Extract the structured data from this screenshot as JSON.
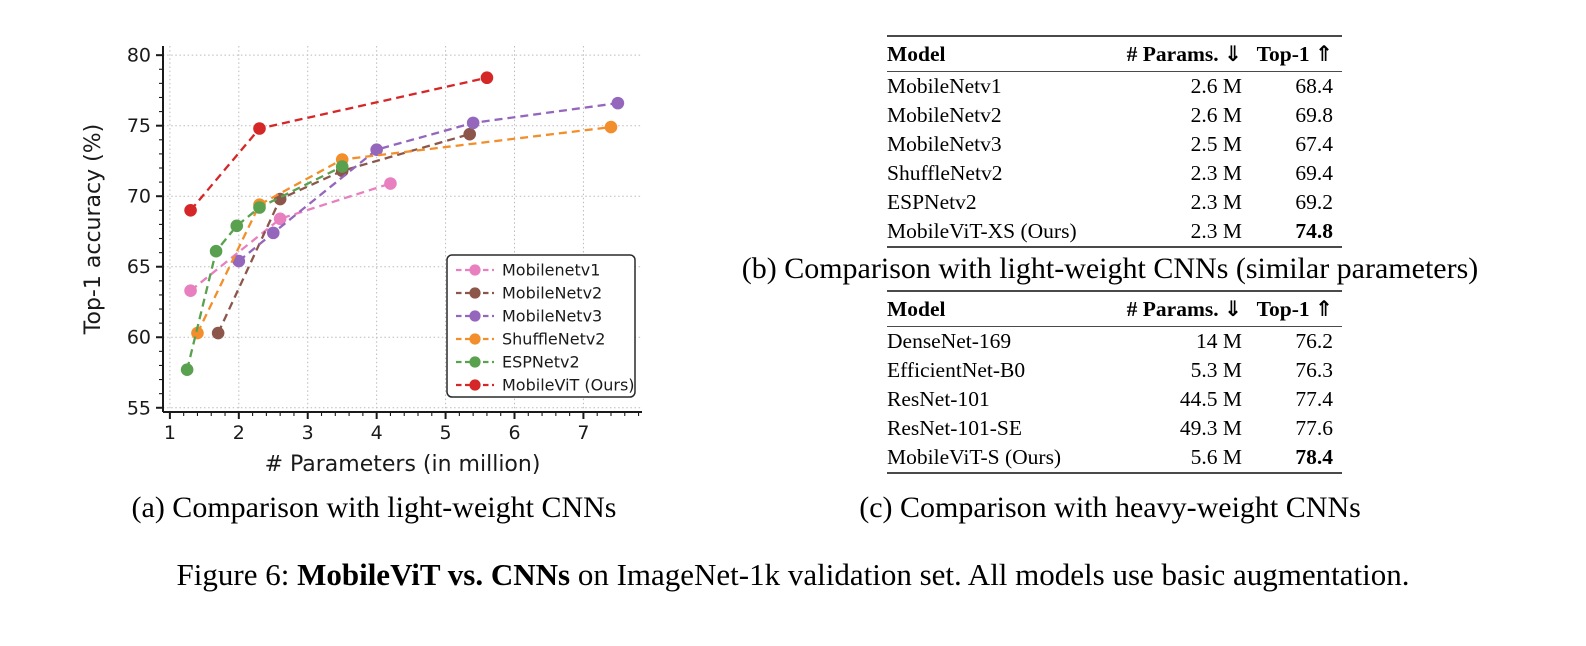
{
  "figure_caption": {
    "prefix": "Figure 6: ",
    "bold": "MobileViT vs. CNNs",
    "suffix": " on ImageNet-1k validation set. All models use basic augmentation."
  },
  "panel_a": {
    "caption": "(a) Comparison with light-weight CNNs"
  },
  "panel_b": {
    "caption": "(b) Comparison with light-weight CNNs (similar parameters)",
    "table": {
      "columns": [
        "Model",
        "# Params. ⇓",
        "Top-1 ⇑"
      ],
      "rows": [
        {
          "model": "MobileNetv1",
          "params": "2.6 M",
          "top1": "68.4",
          "bold": false
        },
        {
          "model": "MobileNetv2",
          "params": "2.6 M",
          "top1": "69.8",
          "bold": false
        },
        {
          "model": "MobileNetv3",
          "params": "2.5 M",
          "top1": "67.4",
          "bold": false
        },
        {
          "model": "ShuffleNetv2",
          "params": "2.3 M",
          "top1": "69.4",
          "bold": false
        },
        {
          "model": "ESPNetv2",
          "params": "2.3 M",
          "top1": "69.2",
          "bold": false
        },
        {
          "model": "MobileViT-XS (Ours)",
          "params": "2.3 M",
          "top1": "74.8",
          "bold": true
        }
      ]
    }
  },
  "panel_c": {
    "caption": "(c) Comparison with heavy-weight CNNs",
    "table": {
      "columns": [
        "Model",
        "# Params. ⇓",
        "Top-1 ⇑"
      ],
      "rows": [
        {
          "model": "DenseNet-169",
          "params": "14 M",
          "top1": "76.2",
          "bold": false
        },
        {
          "model": "EfficientNet-B0",
          "params": "5.3 M",
          "top1": "76.3",
          "bold": false
        },
        {
          "model": "ResNet-101",
          "params": "44.5 M",
          "top1": "77.4",
          "bold": false
        },
        {
          "model": "ResNet-101-SE",
          "params": "49.3 M",
          "top1": "77.6",
          "bold": false
        },
        {
          "model": "MobileViT-S (Ours)",
          "params": "5.6 M",
          "top1": "78.4",
          "bold": true
        }
      ]
    }
  },
  "chart_data": {
    "type": "line",
    "title": "",
    "xlabel": "# Parameters (in million)",
    "ylabel": "Top-1 accuracy (%)",
    "xlim": [
      0.9,
      7.85
    ],
    "ylim": [
      54.7,
      80.65
    ],
    "xticks": [
      1,
      2,
      3,
      4,
      5,
      6,
      7
    ],
    "yticks": [
      55,
      60,
      65,
      70,
      75,
      80
    ],
    "grid": true,
    "grid_color": "#bbbbbb",
    "legend_position": "lower right",
    "line_style": "dashed",
    "marker": "circle",
    "series": [
      {
        "name": "Mobilenetv1",
        "color": "#e880c0",
        "points": [
          [
            1.3,
            63.3
          ],
          [
            2.6,
            68.4
          ],
          [
            4.2,
            70.9
          ]
        ]
      },
      {
        "name": "MobileNetv2",
        "color": "#8c564b",
        "points": [
          [
            1.7,
            60.3
          ],
          [
            2.6,
            69.8
          ],
          [
            3.5,
            71.8
          ],
          [
            5.35,
            74.4
          ]
        ]
      },
      {
        "name": "MobileNetv3",
        "color": "#9467bd",
        "points": [
          [
            2.0,
            65.4
          ],
          [
            2.5,
            67.4
          ],
          [
            4.0,
            73.3
          ],
          [
            5.4,
            75.2
          ],
          [
            7.5,
            76.6
          ]
        ]
      },
      {
        "name": "ShuffleNetv2",
        "color": "#f28e2b",
        "points": [
          [
            1.4,
            60.3
          ],
          [
            2.3,
            69.4
          ],
          [
            3.5,
            72.6
          ],
          [
            7.4,
            74.9
          ]
        ]
      },
      {
        "name": "ESPNetv2",
        "color": "#59a14f",
        "points": [
          [
            1.25,
            57.7
          ],
          [
            1.67,
            66.1
          ],
          [
            1.97,
            67.9
          ],
          [
            2.3,
            69.2
          ],
          [
            3.5,
            72.1
          ]
        ]
      },
      {
        "name": "MobileViT (Ours)",
        "color": "#d62728",
        "points": [
          [
            1.3,
            69.0
          ],
          [
            2.3,
            74.8
          ],
          [
            5.6,
            78.4
          ]
        ]
      }
    ]
  }
}
